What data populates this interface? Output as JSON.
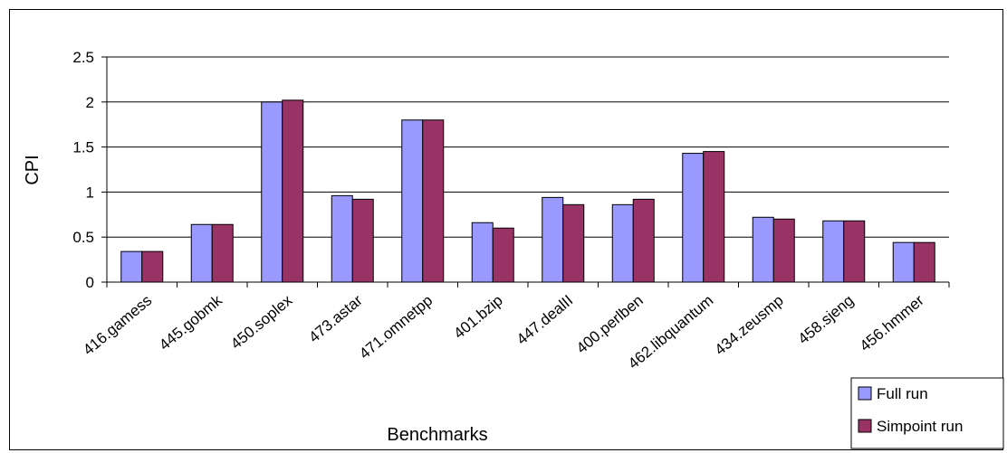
{
  "chart_data": {
    "type": "bar",
    "title": "",
    "xlabel": "Benchmarks",
    "ylabel": "CPI",
    "ylim": [
      0,
      2.5
    ],
    "yticks": [
      "0",
      "0.5",
      "1",
      "1.5",
      "2",
      "2.5"
    ],
    "ytick_values": [
      0,
      0.5,
      1,
      1.5,
      2,
      2.5
    ],
    "grid": true,
    "legend_position": "bottom-right",
    "categories": [
      "416.gamess",
      "445.gobmk",
      "450.soplex",
      "473.astar",
      "471.omnetpp",
      "401.bzip",
      "447.dealII",
      "400.perlben",
      "462.libquantum",
      "434.zeusmp",
      "458.sjeng",
      "456.hmmer"
    ],
    "series": [
      {
        "name": "Full run",
        "color": "#9999ff",
        "values": [
          0.34,
          0.64,
          2.0,
          0.96,
          1.8,
          0.66,
          0.94,
          0.86,
          1.43,
          0.72,
          0.68,
          0.44
        ]
      },
      {
        "name": "Simpoint run",
        "color": "#993366",
        "values": [
          0.34,
          0.64,
          2.02,
          0.92,
          1.8,
          0.6,
          0.86,
          0.92,
          1.45,
          0.7,
          0.68,
          0.44
        ]
      }
    ]
  }
}
